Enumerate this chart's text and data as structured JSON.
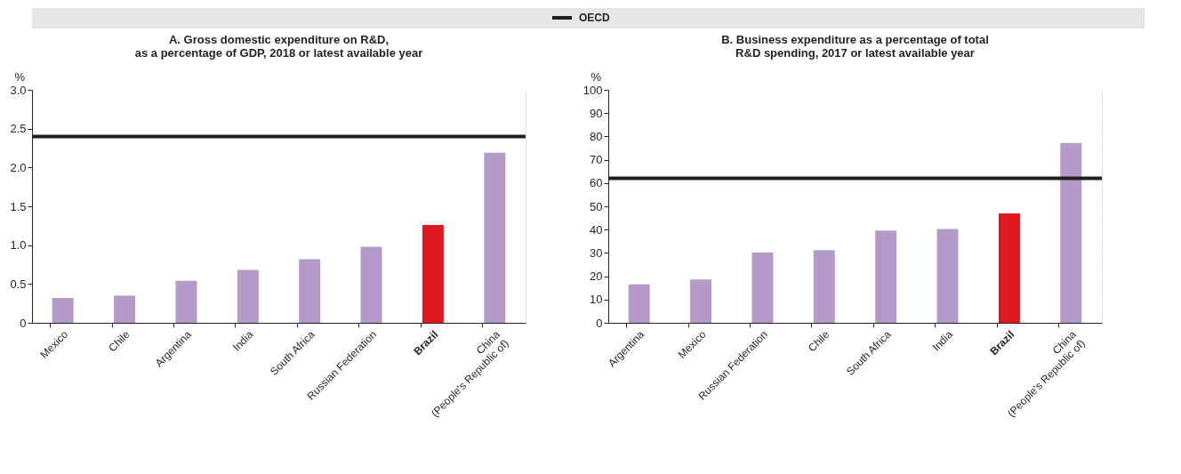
{
  "chart_data": [
    {
      "type": "bar",
      "title": [
        "A. Gross domestic expenditure on R&D,",
        "as a percentage of GDP, 2018 or latest available year"
      ],
      "ylabel": "%",
      "categories": [
        "Mexico",
        "Chile",
        "Argentina",
        "India",
        "South Africa",
        "Russian Federation",
        "Brazil",
        "China\n(People's Republic of)"
      ],
      "values": [
        0.32,
        0.35,
        0.54,
        0.68,
        0.82,
        0.98,
        1.26,
        2.19
      ],
      "colors": [
        "#b49ac8",
        "#b49ac8",
        "#b49ac8",
        "#b49ac8",
        "#b49ac8",
        "#b49ac8",
        "#e0191f",
        "#b49ac8"
      ],
      "ylim": [
        0,
        3
      ],
      "yticks": [
        0,
        {
          "value": 0.5,
          "label": "0.5"
        },
        {
          "value": 1,
          "label": "1.0"
        },
        {
          "value": 1.5,
          "label": "1.5"
        },
        {
          "value": 2,
          "label": "2.0"
        },
        {
          "value": 2.5,
          "label": "2.5"
        },
        {
          "value": 3,
          "label": "3.0"
        }
      ],
      "grid": true,
      "legend": "top",
      "ref_lines": [
        {
          "axis": "y",
          "value": 2.4,
          "label": "OECD",
          "color": "#231f20"
        }
      ]
    },
    {
      "type": "bar",
      "title": [
        "B. Business expenditure as a percentage of total",
        "R&D spending, 2017 or latest available year"
      ],
      "ylabel": "%",
      "categories": [
        "Argentina",
        "Mexico",
        "Russian Federation",
        "Chile",
        "South Africa",
        "India",
        "Brazil",
        "China\n(People's Republic of)"
      ],
      "values": [
        16.5,
        18.6,
        30.2,
        31.2,
        39.6,
        40.3,
        46.9,
        77.2
      ],
      "colors": [
        "#b49ac8",
        "#b49ac8",
        "#b49ac8",
        "#b49ac8",
        "#b49ac8",
        "#b49ac8",
        "#e0191f",
        "#b49ac8"
      ],
      "ylim": [
        0,
        100
      ],
      "yticks": [
        0,
        10,
        20,
        30,
        40,
        50,
        60,
        70,
        80,
        90,
        100
      ],
      "grid": true,
      "ref_lines": [
        {
          "axis": "y",
          "value": 62,
          "color": "#231f20"
        }
      ]
    }
  ]
}
